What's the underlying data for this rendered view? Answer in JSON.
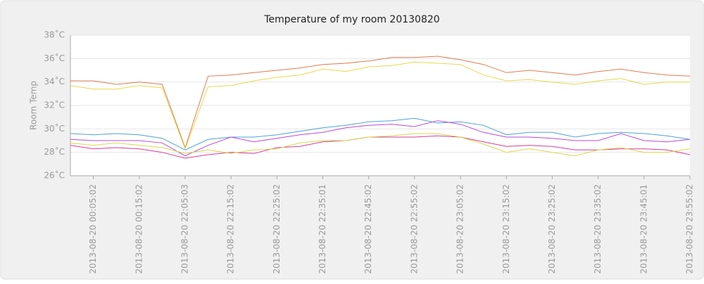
{
  "chart_data": {
    "type": "line",
    "title": "Temperature of my room  20130820",
    "y_label": "Room Temp",
    "categories": [
      null,
      "2013-08-20 00:05:02",
      null,
      "2013-08-20 00:15:02",
      null,
      "2013-08-20 22:05:03",
      null,
      "2013-08-20 22:15:02",
      null,
      "2013-08-20 22:25:02",
      null,
      "2013-08-20 22:35:01",
      null,
      "2013-08-20 22:45:02",
      null,
      "2013-08-20 22:55:02",
      null,
      "2013-08-20 23:05:02",
      null,
      "2013-08-20 23:15:02",
      null,
      "2013-08-20 23:25:02",
      null,
      "2013-08-20 23:35:02",
      null,
      "2013-08-20 23:45:01",
      null,
      "2013-08-20 23:55:02"
    ],
    "series": [
      {
        "color": "#e07b50",
        "values": [
          34.1,
          34.1,
          33.8,
          34.0,
          33.8,
          28.4,
          34.5,
          34.6,
          34.8,
          35.0,
          35.2,
          35.5,
          35.6,
          35.8,
          36.1,
          36.1,
          36.2,
          35.9,
          35.5,
          34.8,
          35.0,
          34.8,
          34.6,
          34.9,
          35.1,
          34.8,
          34.6,
          34.5
        ]
      },
      {
        "color": "#e8d84a",
        "values": [
          33.7,
          33.4,
          33.4,
          33.7,
          33.5,
          28.3,
          33.6,
          33.7,
          34.1,
          34.4,
          34.6,
          35.1,
          34.9,
          35.3,
          35.4,
          35.7,
          35.6,
          35.5,
          34.6,
          34.1,
          34.2,
          34.0,
          33.8,
          34.1,
          34.3,
          33.8,
          34.0,
          34.0
        ]
      },
      {
        "color": "#4aa3d8",
        "values": [
          29.6,
          29.5,
          29.6,
          29.5,
          29.2,
          28.2,
          29.1,
          29.3,
          29.3,
          29.5,
          29.8,
          30.1,
          30.3,
          30.6,
          30.7,
          30.9,
          30.5,
          30.6,
          30.3,
          29.5,
          29.7,
          29.7,
          29.3,
          29.6,
          29.7,
          29.6,
          29.4,
          29.1
        ]
      },
      {
        "color": "#b94ad8",
        "values": [
          29.1,
          29.0,
          29.0,
          29.0,
          28.8,
          27.7,
          28.6,
          29.3,
          28.9,
          29.2,
          29.5,
          29.7,
          30.1,
          30.3,
          30.4,
          30.2,
          30.7,
          30.4,
          29.7,
          29.3,
          29.3,
          29.2,
          29.0,
          29.0,
          29.6,
          29.0,
          28.9,
          29.1
        ]
      },
      {
        "color": "#d83a9a",
        "values": [
          28.6,
          28.3,
          28.4,
          28.3,
          28.0,
          27.5,
          27.8,
          28.0,
          27.9,
          28.4,
          28.5,
          28.9,
          29.0,
          29.3,
          29.3,
          29.3,
          29.4,
          29.3,
          28.9,
          28.5,
          28.6,
          28.5,
          28.2,
          28.2,
          28.3,
          28.3,
          28.2,
          27.8
        ]
      },
      {
        "color": "#d8d84a",
        "values": [
          28.8,
          28.6,
          28.8,
          28.6,
          28.4,
          27.9,
          28.2,
          27.9,
          28.2,
          28.3,
          28.8,
          29.0,
          29.0,
          29.3,
          29.4,
          29.6,
          29.6,
          29.3,
          28.7,
          28.0,
          28.3,
          28.0,
          27.7,
          28.2,
          28.4,
          28.0,
          28.0,
          28.3
        ]
      }
    ],
    "ylim": [
      26,
      38
    ],
    "yticks": [
      {
        "value": 26,
        "label": "26˚C"
      },
      {
        "value": 28,
        "label": "28˚C"
      },
      {
        "value": 30,
        "label": "30˚C"
      },
      {
        "value": 32,
        "label": "32˚C"
      },
      {
        "value": 34,
        "label": "34˚C"
      },
      {
        "value": 36,
        "label": "36˚C"
      },
      {
        "value": 38,
        "label": "38˚C"
      }
    ],
    "grid": true
  }
}
